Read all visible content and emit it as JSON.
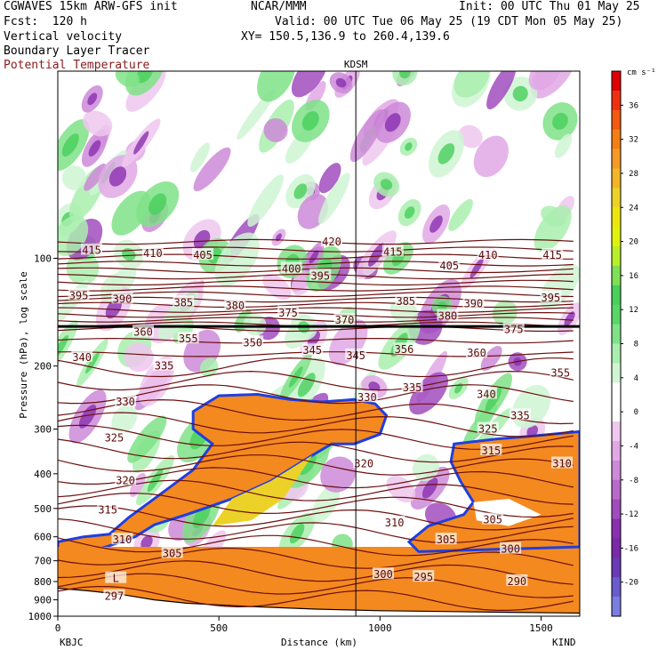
{
  "header": {
    "line1_left": "CGWAVES 15km ARW-GFS init",
    "line2_left": "Fcst:  120 h",
    "line3_left": "Vertical velocity",
    "line4_left": "Boundary Layer Tracer",
    "line5_left": "Potential Temperature",
    "center": "NCAR/MMM",
    "init": "Init: 00 UTC Thu 01 May 25",
    "valid": "Valid: 00 UTC Tue 06 May 25 (19 CDT Mon 05 May 25)",
    "xy": "XY= 150.5,136.9 to 260.4,139.6"
  },
  "colors": {
    "theta": "#6b0f0f",
    "tracer": "#f4891f",
    "tracer_edge": "#1f3fe0"
  },
  "chart_data": {
    "type": "heatmap",
    "xlabel": "Distance (km)",
    "ylabel": "Pressure (hPa), log scale",
    "xlim": [
      0,
      1620
    ],
    "ylim": [
      1000,
      30
    ],
    "yscale": "log",
    "xticks": [
      0,
      500,
      1000,
      1500
    ],
    "yticks": [
      100,
      200,
      300,
      400,
      500,
      600,
      700,
      800,
      900,
      1000
    ],
    "left_station": "KBJC",
    "right_station": "KIND",
    "marker_station": "KDSM",
    "marker_x": 925,
    "colorbar": {
      "unit": "cm s⁻¹",
      "labels": [
        36,
        32,
        28,
        24,
        20,
        16,
        12,
        8,
        4,
        0,
        -4,
        -8,
        -12,
        -16,
        -20
      ],
      "colors": [
        "#e00000",
        "#ef3010",
        "#f25a10",
        "#f47e15",
        "#f59a25",
        "#f2b52a",
        "#ecd228",
        "#ece60d",
        "#dff20c",
        "#b7f028",
        "#7fe055",
        "#47d05a",
        "#5ad668",
        "#7fe287",
        "#a9eeae",
        "#cff5d3",
        "#ffffff",
        "#ffffff",
        "#efc7ef",
        "#e0a8e5",
        "#cc8ad8",
        "#b86acb",
        "#a14cbe",
        "#8a2fb0",
        "#7a2aa8",
        "#6a3ab8",
        "#6a5ccc",
        "#7a7ee0"
      ]
    },
    "theta_labels": [
      {
        "text": "415",
        "x": 105,
        "p": 95
      },
      {
        "text": "410",
        "x": 295,
        "p": 97
      },
      {
        "text": "405",
        "x": 450,
        "p": 98
      },
      {
        "text": "420",
        "x": 850,
        "p": 90
      },
      {
        "text": "415",
        "x": 1040,
        "p": 96
      },
      {
        "text": "410",
        "x": 1335,
        "p": 98
      },
      {
        "text": "415",
        "x": 1535,
        "p": 98
      },
      {
        "text": "395",
        "x": 65,
        "p": 127
      },
      {
        "text": "390",
        "x": 200,
        "p": 130
      },
      {
        "text": "385",
        "x": 390,
        "p": 133
      },
      {
        "text": "380",
        "x": 550,
        "p": 136
      },
      {
        "text": "400",
        "x": 725,
        "p": 107
      },
      {
        "text": "395",
        "x": 815,
        "p": 112
      },
      {
        "text": "375",
        "x": 715,
        "p": 142
      },
      {
        "text": "370",
        "x": 890,
        "p": 149
      },
      {
        "text": "385",
        "x": 1080,
        "p": 132
      },
      {
        "text": "405",
        "x": 1215,
        "p": 105
      },
      {
        "text": "390",
        "x": 1290,
        "p": 134
      },
      {
        "text": "395",
        "x": 1530,
        "p": 129
      },
      {
        "text": "380",
        "x": 1210,
        "p": 145
      },
      {
        "text": "375",
        "x": 1415,
        "p": 158
      },
      {
        "text": "360",
        "x": 265,
        "p": 161
      },
      {
        "text": "355",
        "x": 405,
        "p": 168
      },
      {
        "text": "350",
        "x": 605,
        "p": 172
      },
      {
        "text": "345",
        "x": 790,
        "p": 181
      },
      {
        "text": "345",
        "x": 925,
        "p": 187
      },
      {
        "text": "356",
        "x": 1075,
        "p": 180
      },
      {
        "text": "360",
        "x": 1300,
        "p": 184
      },
      {
        "text": "355",
        "x": 1560,
        "p": 209
      },
      {
        "text": "340",
        "x": 75,
        "p": 189
      },
      {
        "text": "335",
        "x": 330,
        "p": 200
      },
      {
        "text": "330",
        "x": 210,
        "p": 252
      },
      {
        "text": "330",
        "x": 960,
        "p": 245
      },
      {
        "text": "335",
        "x": 1100,
        "p": 230
      },
      {
        "text": "340",
        "x": 1330,
        "p": 240
      },
      {
        "text": "335",
        "x": 1435,
        "p": 275
      },
      {
        "text": "325",
        "x": 175,
        "p": 318
      },
      {
        "text": "325",
        "x": 1335,
        "p": 300
      },
      {
        "text": "320",
        "x": 210,
        "p": 418
      },
      {
        "text": "320",
        "x": 950,
        "p": 375
      },
      {
        "text": "315",
        "x": 1345,
        "p": 345
      },
      {
        "text": "310",
        "x": 1565,
        "p": 375
      },
      {
        "text": "315",
        "x": 155,
        "p": 505
      },
      {
        "text": "310",
        "x": 200,
        "p": 612
      },
      {
        "text": "305",
        "x": 355,
        "p": 668
      },
      {
        "text": "310",
        "x": 1045,
        "p": 548
      },
      {
        "text": "305",
        "x": 1350,
        "p": 538
      },
      {
        "text": "305",
        "x": 1205,
        "p": 612
      },
      {
        "text": "300",
        "x": 1405,
        "p": 650
      },
      {
        "text": "300",
        "x": 1010,
        "p": 765
      },
      {
        "text": "295",
        "x": 1135,
        "p": 778
      },
      {
        "text": "290",
        "x": 1425,
        "p": 800
      },
      {
        "text": "297",
        "x": 175,
        "p": 880
      },
      {
        "text": "L",
        "x": 180,
        "p": 785
      }
    ]
  }
}
